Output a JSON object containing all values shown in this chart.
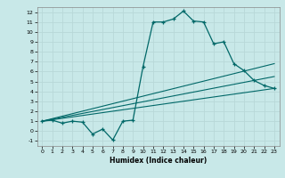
{
  "xlabel": "Humidex (Indice chaleur)",
  "background_color": "#c8e8e8",
  "grid_color": "#b8d8d8",
  "line_color": "#006868",
  "xlim": [
    -0.5,
    23.5
  ],
  "ylim": [
    -1.5,
    12.5
  ],
  "xticks": [
    0,
    1,
    2,
    3,
    4,
    5,
    6,
    7,
    8,
    9,
    10,
    11,
    12,
    13,
    14,
    15,
    16,
    17,
    18,
    19,
    20,
    21,
    22,
    23
  ],
  "yticks": [
    -1,
    0,
    1,
    2,
    3,
    4,
    5,
    6,
    7,
    8,
    9,
    10,
    11,
    12
  ],
  "series1_x": [
    0,
    1,
    2,
    3,
    4,
    5,
    6,
    7,
    8,
    9,
    10,
    11,
    12,
    13,
    14,
    15,
    16,
    17,
    18,
    19,
    20,
    21,
    22,
    23
  ],
  "series1_y": [
    1.0,
    1.1,
    0.8,
    1.0,
    0.9,
    -0.3,
    0.2,
    -0.9,
    1.0,
    1.1,
    6.5,
    11.0,
    11.0,
    11.3,
    12.1,
    11.1,
    11.0,
    8.8,
    9.0,
    6.8,
    6.1,
    5.1,
    4.6,
    4.3
  ],
  "series2_x": [
    0,
    23
  ],
  "series2_y": [
    1.0,
    6.8
  ],
  "series3_x": [
    0,
    23
  ],
  "series3_y": [
    1.0,
    5.5
  ],
  "series4_x": [
    0,
    23
  ],
  "series4_y": [
    1.0,
    4.3
  ]
}
